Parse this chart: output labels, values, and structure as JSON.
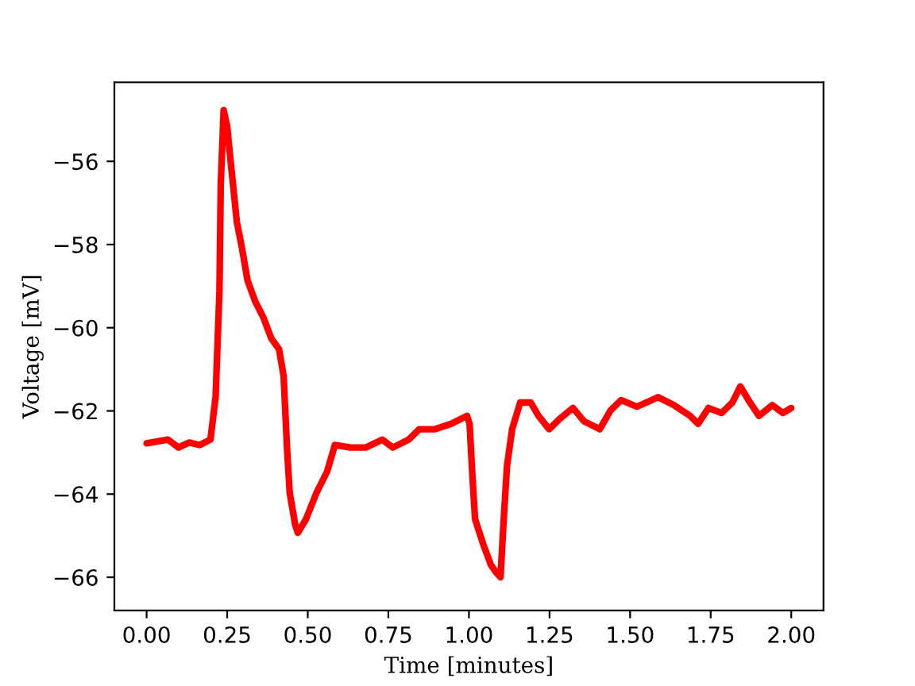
{
  "chart_data": {
    "type": "line",
    "xlabel": "Time [minutes]",
    "ylabel": "Voltage [mV]",
    "x": [
      0.0,
      0.066,
      0.099,
      0.132,
      0.165,
      0.198,
      0.206,
      0.214,
      0.226,
      0.23,
      0.239,
      0.25,
      0.263,
      0.28,
      0.296,
      0.313,
      0.337,
      0.362,
      0.387,
      0.411,
      0.425,
      0.436,
      0.444,
      0.461,
      0.469,
      0.494,
      0.527,
      0.56,
      0.584,
      0.632,
      0.681,
      0.731,
      0.764,
      0.813,
      0.846,
      0.895,
      0.945,
      0.994,
      1.002,
      1.011,
      1.019,
      1.044,
      1.068,
      1.085,
      1.098,
      1.106,
      1.118,
      1.134,
      1.159,
      1.192,
      1.216,
      1.249,
      1.283,
      1.323,
      1.357,
      1.406,
      1.439,
      1.472,
      1.521,
      1.587,
      1.636,
      1.686,
      1.711,
      1.743,
      1.784,
      1.817,
      1.842,
      1.867,
      1.9,
      1.941,
      1.974,
      2.0
    ],
    "series": [
      {
        "color": "#ff0000",
        "values": [
          -62.78,
          -62.69,
          -62.88,
          -62.76,
          -62.82,
          -62.69,
          -62.18,
          -61.67,
          -59.12,
          -56.56,
          -54.77,
          -55.16,
          -56.18,
          -57.46,
          -58.09,
          -58.86,
          -59.37,
          -59.75,
          -60.26,
          -60.52,
          -61.16,
          -62.95,
          -63.97,
          -64.74,
          -64.93,
          -64.61,
          -63.97,
          -63.46,
          -62.82,
          -62.88,
          -62.88,
          -62.69,
          -62.88,
          -62.69,
          -62.44,
          -62.44,
          -62.31,
          -62.12,
          -62.31,
          -63.59,
          -64.6,
          -65.2,
          -65.7,
          -65.89,
          -66.0,
          -64.86,
          -63.33,
          -62.44,
          -61.8,
          -61.8,
          -62.12,
          -62.44,
          -62.18,
          -61.93,
          -62.25,
          -62.44,
          -61.99,
          -61.74,
          -61.9,
          -61.67,
          -61.86,
          -62.12,
          -62.31,
          -61.93,
          -62.05,
          -61.8,
          -61.41,
          -61.74,
          -62.12,
          -61.86,
          -62.05,
          -61.93
        ]
      }
    ],
    "xlim": [
      -0.1,
      2.1
    ],
    "ylim": [
      -66.8,
      -54.1
    ],
    "xticks": [
      {
        "value": 0,
        "label": "0.00"
      },
      {
        "value": 0.25,
        "label": "0.25"
      },
      {
        "value": 0.5,
        "label": "0.50"
      },
      {
        "value": 0.75,
        "label": "0.75"
      },
      {
        "value": 1,
        "label": "1.00"
      },
      {
        "value": 1.25,
        "label": "1.25"
      },
      {
        "value": 1.5,
        "label": "1.50"
      },
      {
        "value": 1.75,
        "label": "1.75"
      },
      {
        "value": 2,
        "label": "2.00"
      }
    ],
    "yticks": [
      {
        "value": -66,
        "label": "−66"
      },
      {
        "value": -64,
        "label": "−64"
      },
      {
        "value": -62,
        "label": "−62"
      },
      {
        "value": -60,
        "label": "−60"
      },
      {
        "value": -58,
        "label": "−58"
      },
      {
        "value": -56,
        "label": "−56"
      }
    ],
    "grid": false,
    "line_style": "solid",
    "marker": "none"
  }
}
